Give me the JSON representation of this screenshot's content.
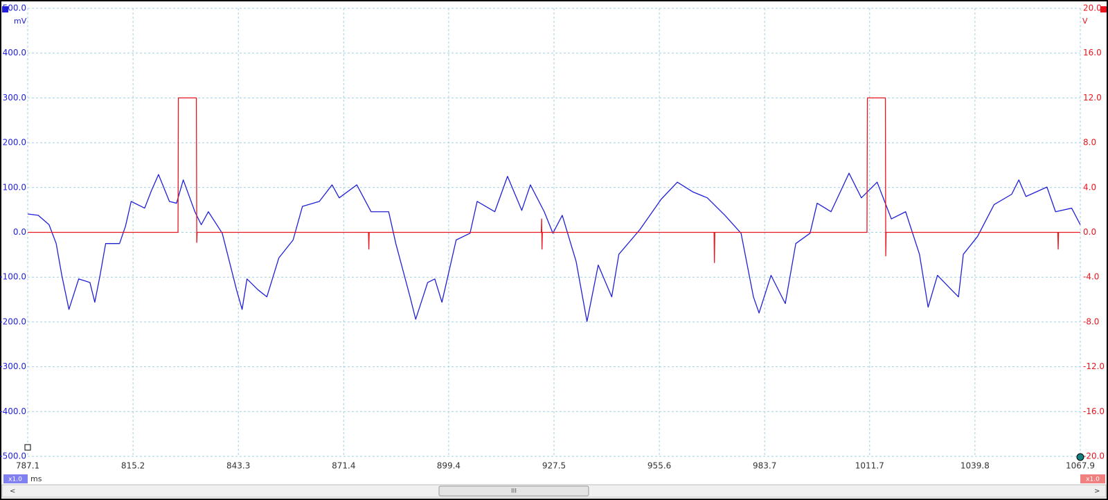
{
  "chart_data": {
    "type": "line",
    "x_unit": "ms",
    "y_unit": "mV",
    "y2_unit": "V",
    "left_zoom": "x1.0",
    "right_zoom": "x1.0",
    "grid": true,
    "xlim": [
      787.1,
      1067.9
    ],
    "xticks": [
      787.1,
      815.2,
      843.3,
      871.4,
      899.4,
      927.5,
      955.6,
      983.7,
      1011.7,
      1039.8,
      1067.9
    ],
    "ylim": [
      -500,
      500
    ],
    "yticks": [
      {
        "value": 500,
        "label": "500.0"
      },
      {
        "value": 400,
        "label": "400.0"
      },
      {
        "value": 300,
        "label": "300.0"
      },
      {
        "value": 200,
        "label": "200.0"
      },
      {
        "value": 100,
        "label": "100.0"
      },
      {
        "value": 0,
        "label": "0.0"
      },
      {
        "value": -100,
        "label": "-100.0"
      },
      {
        "value": -200,
        "label": "-200.0"
      },
      {
        "value": -300,
        "label": "-300.0"
      },
      {
        "value": -400,
        "label": "-400.0"
      },
      {
        "value": -500,
        "label": "-500.0"
      }
    ],
    "y2lim": [
      -20,
      20
    ],
    "y2ticks": [
      {
        "value": 20,
        "label": "20.0"
      },
      {
        "value": 16,
        "label": "16.0"
      },
      {
        "value": 12,
        "label": "12.0"
      },
      {
        "value": 8,
        "label": "8.0"
      },
      {
        "value": 4,
        "label": "4.0"
      },
      {
        "value": 0,
        "label": "0.0"
      },
      {
        "value": -4,
        "label": "-4.0"
      },
      {
        "value": -8,
        "label": "-8.0"
      },
      {
        "value": -12,
        "label": "-12.0"
      },
      {
        "value": -16,
        "label": "-16.0"
      },
      {
        "value": -20,
        "label": "-20.0"
      }
    ],
    "series": [
      {
        "color": "#1f1fd6",
        "x": [
          787.1,
          789.9,
          792.8,
          794.7,
          796.2,
          798.1,
          800.7,
          803.7,
          805.0,
          806.4,
          807.9,
          811.6,
          813.2,
          814.7,
          818.3,
          820.1,
          822.0,
          824.9,
          826.8,
          828.6,
          831.7,
          833.4,
          835.3,
          839.0,
          840.9,
          842.8,
          844.3,
          845.6,
          848.5,
          850.9,
          854.1,
          857.9,
          860.4,
          864.9,
          868.3,
          870.2,
          874.9,
          878.7,
          883.4,
          885.3,
          889.1,
          890.6,
          893.8,
          895.7,
          897.6,
          901.4,
          905.1,
          907.0,
          911.7,
          915.1,
          918.9,
          921.2,
          924.9,
          927.2,
          929.7,
          933.4,
          936.3,
          939.3,
          942.9,
          944.8,
          950.4,
          956.1,
          960.4,
          964.6,
          968.4,
          973.1,
          977.4,
          980.7,
          982.2,
          985.4,
          989.2,
          992.0,
          995.8,
          997.7,
          1001.4,
          1006.2,
          1009.5,
          1013.7,
          1017.5,
          1021.3,
          1025.0,
          1027.3,
          1029.8,
          1033.5,
          1035.4,
          1036.7,
          1040.5,
          1044.9,
          1049.6,
          1051.5,
          1053.4,
          1059.0,
          1061.3,
          1065.6,
          1067.9
        ],
        "values": [
          41,
          38,
          17,
          -25,
          -96,
          -172,
          -104,
          -112,
          -156,
          -96,
          -25,
          -25,
          14,
          69,
          54,
          93,
          129,
          69,
          65,
          117,
          46,
          17,
          46,
          -2,
          -65,
          -128,
          -172,
          -104,
          -128,
          -144,
          -57,
          -17,
          58,
          69,
          106,
          77,
          106,
          46,
          46,
          -25,
          -144,
          -194,
          -112,
          -104,
          -156,
          -17,
          -2,
          69,
          46,
          125,
          49,
          106,
          46,
          -2,
          38,
          -65,
          -199,
          -73,
          -144,
          -49,
          6,
          74,
          112,
          90,
          77,
          38,
          -2,
          -144,
          -180,
          -96,
          -159,
          -25,
          -2,
          65,
          46,
          132,
          77,
          112,
          30,
          46,
          -49,
          -167,
          -96,
          -128,
          -144,
          -49,
          -9,
          62,
          85,
          117,
          80,
          101,
          46,
          54,
          17
        ]
      },
      {
        "color": "#e8141e",
        "axis": "y2",
        "x": [
          787.1,
          827.2,
          827.3,
          832.1,
          832.2,
          832.3,
          878.0,
          878.1,
          878.2,
          924.1,
          924.2,
          924.3,
          924.4,
          970.2,
          970.3,
          970.4,
          1011.0,
          1011.1,
          1015.9,
          1016.0,
          1016.1,
          1061.9,
          1062.0,
          1062.1,
          1067.9
        ],
        "values": [
          0,
          0,
          12,
          12,
          -0.9,
          0,
          0,
          -1.5,
          0,
          0,
          1.2,
          -1.5,
          0,
          0,
          -2.7,
          0,
          0,
          12,
          12,
          -2.1,
          0,
          0,
          -1.5,
          0,
          0
        ]
      }
    ]
  }
}
